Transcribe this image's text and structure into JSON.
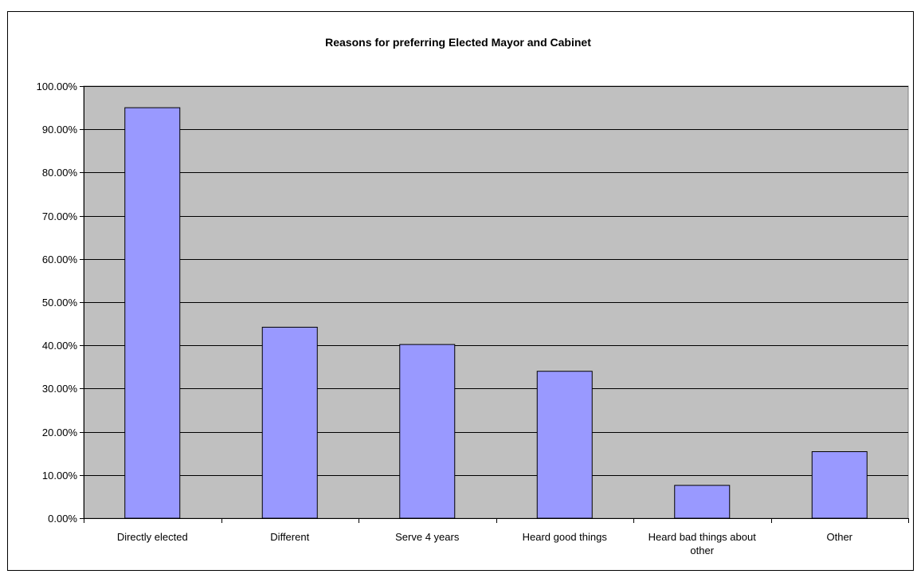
{
  "chart_data": {
    "type": "bar",
    "title": "Reasons for preferring Elected Mayor and Cabinet",
    "categories": [
      [
        "Directly elected"
      ],
      [
        "Different"
      ],
      [
        "Serve 4 years"
      ],
      [
        "Heard good things"
      ],
      [
        "Heard bad things about",
        "other"
      ],
      [
        "Other"
      ]
    ],
    "values": [
      95.0,
      44.2,
      40.2,
      34.0,
      7.6,
      15.4
    ],
    "ylim": [
      0,
      100
    ],
    "ytick_step": 10,
    "ytick_labels": [
      "0.00%",
      "10.00%",
      "20.00%",
      "30.00%",
      "40.00%",
      "50.00%",
      "60.00%",
      "70.00%",
      "80.00%",
      "90.00%",
      "100.00%"
    ],
    "grid": true,
    "legend": "none",
    "colors": {
      "plot_background": "#c0c0c0",
      "bar_fill": "#9999ff",
      "bar_stroke": "#000000",
      "gridline": "#000000"
    }
  }
}
